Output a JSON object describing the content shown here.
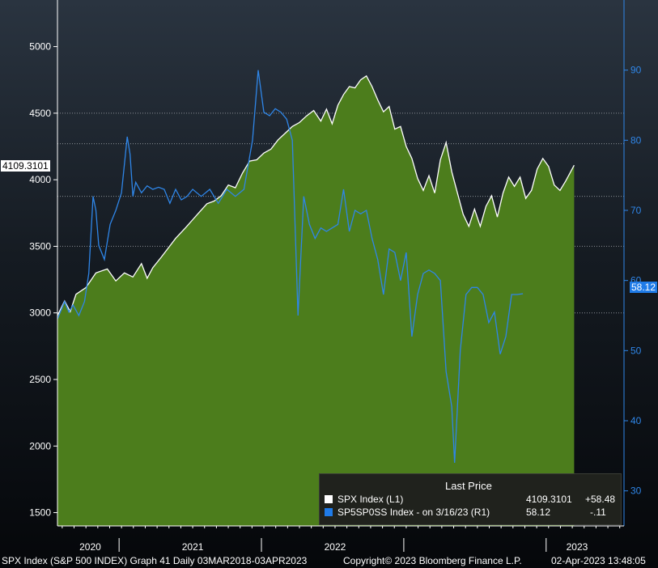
{
  "chart_data": {
    "type": "line",
    "legend_position": "bottom-right",
    "legend_header": "Last Price",
    "x_ticks": [
      "2020",
      "2021",
      "2022",
      "2023"
    ],
    "left_axis": {
      "ylim": [
        1400,
        5350
      ],
      "ticks": [
        1500,
        2000,
        2500,
        3000,
        3500,
        4000,
        4500,
        5000
      ],
      "grid": [
        3000,
        3500,
        4500
      ]
    },
    "right_axis": {
      "ylim": [
        25,
        100
      ],
      "ticks": [
        30,
        40,
        50,
        60,
        70,
        80,
        90
      ],
      "grid": [
        72,
        79.5
      ]
    },
    "series": [
      {
        "name": "SPX Index  (L1)",
        "axis": "left",
        "style": "area",
        "color": "#ffffff",
        "fill": "#4c7d1c",
        "last_value": "4109.3101",
        "change": "+58.48",
        "points": [
          [
            2019.55,
            2980
          ],
          [
            2019.6,
            3090
          ],
          [
            2019.64,
            3010
          ],
          [
            2019.68,
            3140
          ],
          [
            2019.75,
            3190
          ],
          [
            2019.82,
            3300
          ],
          [
            2019.9,
            3330
          ],
          [
            2019.96,
            3240
          ],
          [
            2020.02,
            3300
          ],
          [
            2020.08,
            3270
          ],
          [
            2020.14,
            3370
          ],
          [
            2020.18,
            3260
          ],
          [
            2020.22,
            3340
          ],
          [
            2020.28,
            3420
          ],
          [
            2020.33,
            3490
          ],
          [
            2020.38,
            3560
          ],
          [
            2020.45,
            3640
          ],
          [
            2020.5,
            3700
          ],
          [
            2020.55,
            3760
          ],
          [
            2020.6,
            3820
          ],
          [
            2020.65,
            3840
          ],
          [
            2020.7,
            3880
          ],
          [
            2020.75,
            3960
          ],
          [
            2020.8,
            3940
          ],
          [
            2020.85,
            4050
          ],
          [
            2020.9,
            4140
          ],
          [
            2020.95,
            4150
          ],
          [
            2021.0,
            4200
          ],
          [
            2021.05,
            4230
          ],
          [
            2021.1,
            4300
          ],
          [
            2021.15,
            4350
          ],
          [
            2021.2,
            4400
          ],
          [
            2021.25,
            4430
          ],
          [
            2021.3,
            4480
          ],
          [
            2021.35,
            4520
          ],
          [
            2021.4,
            4440
          ],
          [
            2021.44,
            4530
          ],
          [
            2021.48,
            4420
          ],
          [
            2021.52,
            4560
          ],
          [
            2021.56,
            4640
          ],
          [
            2021.6,
            4700
          ],
          [
            2021.64,
            4690
          ],
          [
            2021.68,
            4750
          ],
          [
            2021.72,
            4780
          ],
          [
            2021.76,
            4700
          ],
          [
            2021.8,
            4600
          ],
          [
            2021.84,
            4510
          ],
          [
            2021.88,
            4550
          ],
          [
            2021.92,
            4380
          ],
          [
            2021.96,
            4400
          ],
          [
            2022.0,
            4250
          ],
          [
            2022.04,
            4160
          ],
          [
            2022.08,
            4010
          ],
          [
            2022.12,
            3920
          ],
          [
            2022.16,
            4030
          ],
          [
            2022.2,
            3900
          ],
          [
            2022.24,
            4150
          ],
          [
            2022.28,
            4280
          ],
          [
            2022.32,
            4060
          ],
          [
            2022.36,
            3900
          ],
          [
            2022.4,
            3740
          ],
          [
            2022.44,
            3650
          ],
          [
            2022.48,
            3780
          ],
          [
            2022.52,
            3650
          ],
          [
            2022.56,
            3800
          ],
          [
            2022.6,
            3880
          ],
          [
            2022.64,
            3720
          ],
          [
            2022.68,
            3900
          ],
          [
            2022.72,
            4020
          ],
          [
            2022.76,
            3950
          ],
          [
            2022.8,
            4020
          ],
          [
            2022.84,
            3860
          ],
          [
            2022.88,
            3920
          ],
          [
            2022.92,
            4080
          ],
          [
            2022.96,
            4160
          ],
          [
            2023.0,
            4100
          ],
          [
            2023.04,
            3960
          ],
          [
            2023.08,
            3920
          ],
          [
            2023.12,
            3990
          ],
          [
            2023.15,
            4050
          ],
          [
            2023.18,
            4109.31
          ]
        ]
      },
      {
        "name": "SP5SP0SS Index -   on 3/16/23  (R1)",
        "axis": "right",
        "style": "line",
        "color": "#2f86e8",
        "last_value": "58.12",
        "change": "-.11",
        "points": [
          [
            2019.55,
            54.5
          ],
          [
            2019.6,
            57.0
          ],
          [
            2019.63,
            55.5
          ],
          [
            2019.66,
            56.5
          ],
          [
            2019.7,
            55.0
          ],
          [
            2019.74,
            57.0
          ],
          [
            2019.77,
            61.0
          ],
          [
            2019.8,
            72.0
          ],
          [
            2019.82,
            70.0
          ],
          [
            2019.84,
            65.0
          ],
          [
            2019.88,
            63.0
          ],
          [
            2019.92,
            68.0
          ],
          [
            2019.96,
            70.0
          ],
          [
            2020.0,
            72.5
          ],
          [
            2020.04,
            80.5
          ],
          [
            2020.06,
            78.0
          ],
          [
            2020.08,
            72.0
          ],
          [
            2020.1,
            74.0
          ],
          [
            2020.14,
            72.5
          ],
          [
            2020.18,
            73.5
          ],
          [
            2020.22,
            73.0
          ],
          [
            2020.26,
            73.3
          ],
          [
            2020.3,
            73.0
          ],
          [
            2020.34,
            71.0
          ],
          [
            2020.38,
            73.0
          ],
          [
            2020.42,
            71.5
          ],
          [
            2020.46,
            72.0
          ],
          [
            2020.5,
            73.0
          ],
          [
            2020.56,
            72.0
          ],
          [
            2020.62,
            73.0
          ],
          [
            2020.68,
            71.0
          ],
          [
            2020.74,
            73.0
          ],
          [
            2020.8,
            72.0
          ],
          [
            2020.86,
            73.0
          ],
          [
            2020.92,
            80.0
          ],
          [
            2020.96,
            90.0
          ],
          [
            2021.0,
            84.0
          ],
          [
            2021.04,
            83.5
          ],
          [
            2021.08,
            84.5
          ],
          [
            2021.12,
            84.0
          ],
          [
            2021.16,
            83.0
          ],
          [
            2021.2,
            80.0
          ],
          [
            2021.24,
            55.0
          ],
          [
            2021.28,
            72.0
          ],
          [
            2021.32,
            68.0
          ],
          [
            2021.36,
            66.0
          ],
          [
            2021.4,
            67.5
          ],
          [
            2021.44,
            67.0
          ],
          [
            2021.48,
            67.5
          ],
          [
            2021.52,
            68.0
          ],
          [
            2021.56,
            73.0
          ],
          [
            2021.6,
            67.0
          ],
          [
            2021.64,
            70.0
          ],
          [
            2021.68,
            69.5
          ],
          [
            2021.72,
            70.0
          ],
          [
            2021.76,
            66.0
          ],
          [
            2021.8,
            63.0
          ],
          [
            2021.84,
            58.0
          ],
          [
            2021.88,
            64.5
          ],
          [
            2021.92,
            64.0
          ],
          [
            2021.96,
            60.0
          ],
          [
            2022.0,
            64.0
          ],
          [
            2022.04,
            52.0
          ],
          [
            2022.08,
            58.0
          ],
          [
            2022.12,
            61.0
          ],
          [
            2022.16,
            61.5
          ],
          [
            2022.2,
            61.0
          ],
          [
            2022.24,
            60.0
          ],
          [
            2022.28,
            47.0
          ],
          [
            2022.32,
            42.0
          ],
          [
            2022.34,
            34.0
          ],
          [
            2022.38,
            50.0
          ],
          [
            2022.42,
            58.0
          ],
          [
            2022.46,
            59.0
          ],
          [
            2022.5,
            59.0
          ],
          [
            2022.54,
            58.0
          ],
          [
            2022.58,
            54.0
          ],
          [
            2022.62,
            55.5
          ],
          [
            2022.66,
            49.5
          ],
          [
            2022.7,
            52.0
          ],
          [
            2022.74,
            58.0
          ],
          [
            2022.78,
            58.0
          ],
          [
            2022.82,
            58.12
          ]
        ]
      }
    ]
  },
  "legend": {
    "header": "Last Price",
    "rows": [
      {
        "label": "SPX Index  (L1)",
        "value": "4109.3101",
        "change": "+58.48",
        "color": "#ffffff"
      },
      {
        "label": "SP5SP0SS Index -   on 3/16/23  (R1)",
        "value": "58.12",
        "change": "-.11",
        "color": "#1f7be8"
      }
    ]
  },
  "badges": {
    "left_last": "4109.3101",
    "right_last": "58.12"
  },
  "footer": {
    "left": "SPX Index (S&P 500 INDEX) Graph 41  Daily 03MAR2018-03APR2023",
    "center": "Copyright© 2023 Bloomberg Finance L.P.",
    "right": "02-Apr-2023 13:48:05"
  }
}
